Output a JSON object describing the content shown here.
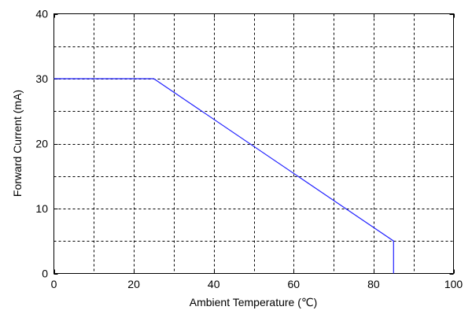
{
  "chart_data": {
    "type": "line",
    "title": "",
    "xlabel": "Ambient  Temperature (℃)",
    "ylabel": "Forward  Current (mA)",
    "xlim": [
      0,
      100
    ],
    "ylim": [
      0,
      40
    ],
    "x_ticks": [
      0,
      20,
      40,
      60,
      80,
      100
    ],
    "y_ticks": [
      0,
      10,
      20,
      30,
      40
    ],
    "x_ticks_display": [
      "0",
      "20",
      "40",
      "60",
      "80",
      "100"
    ],
    "y_ticks_display": [
      "0",
      "10",
      "20",
      "30",
      "40"
    ],
    "grid": true,
    "grid_x_step": 10,
    "grid_y_step": 5,
    "grid_style": "dashed",
    "series": [
      {
        "color": "#2222ff",
        "x": [
          0,
          25,
          85,
          85
        ],
        "y": [
          30,
          30,
          5,
          0
        ]
      }
    ]
  }
}
